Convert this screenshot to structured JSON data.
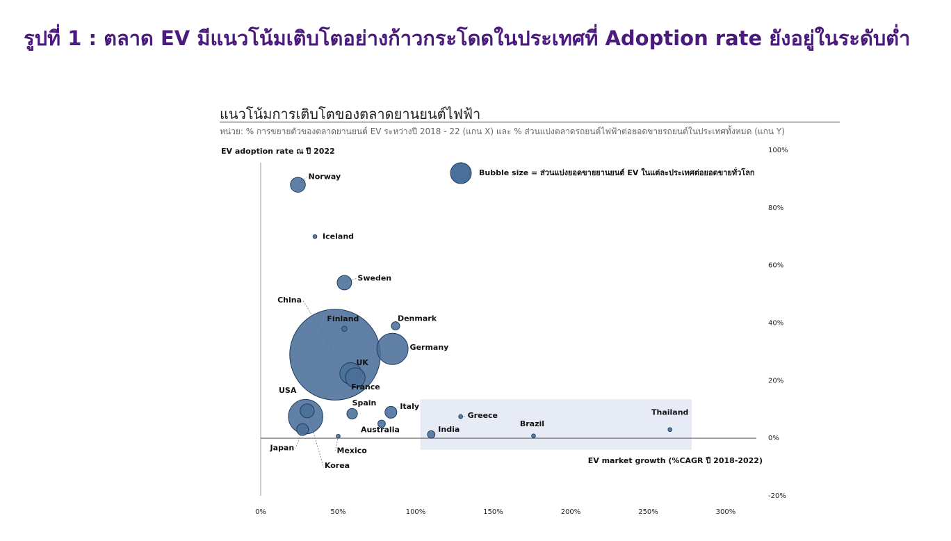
{
  "page_title": "รูปที่ 1 : ตลาด EV มีแนวโน้มเติบโตอย่างก้าวกระโดดในประเทศที่ Adoption rate ยังอยู่ในระดับต่ำ",
  "colors": {
    "title": "#4b1a7d",
    "bubble_fill": "#4a6f99",
    "bubble_stroke": "#1f3d63",
    "highlight_box": "#e6ebf5"
  },
  "chart_data": {
    "type": "scatter",
    "title": "แนวโน้มการเติบโตของตลาดยานยนต์ไฟฟ้า",
    "subtitle": "หน่วย: % การขยายตัวของตลาดยานยนต์ EV ระหว่างปี 2018 - 22 (แกน X) และ % ส่วนแบ่งตลาดรถยนต์ไฟฟ้าต่อยอดขายรถยนต์ในประเทศทั้งหมด (แกน Y)",
    "xlabel": "EV market growth (%CAGR ปี 2018-2022)",
    "ylabel": "EV adoption rate ณ ปี 2022",
    "bubble_legend": "Bubble size = ส่วนแบ่งยอดขายยานยนต์ EV ในแต่ละประเทศต่อยอดขายทั่วโลก",
    "xlim": [
      0,
      300
    ],
    "ylim": [
      -20,
      100
    ],
    "x_ticks": [
      "0%",
      "50%",
      "100%",
      "150%",
      "200%",
      "250%",
      "300%"
    ],
    "y_ticks": [
      "100%",
      "80%",
      "60%",
      "40%",
      "20%",
      "0%",
      "-20%"
    ],
    "highlight_region": {
      "x": [
        103,
        278
      ],
      "y": [
        -4,
        13.5
      ]
    },
    "points": [
      {
        "name": "Norway",
        "x": 24,
        "y": 88,
        "size": 1.6
      },
      {
        "name": "Iceland",
        "x": 35,
        "y": 70,
        "size": 0.05
      },
      {
        "name": "Sweden",
        "x": 54,
        "y": 54,
        "size": 1.5
      },
      {
        "name": "China",
        "x": 48,
        "y": 29,
        "size": 59.0
      },
      {
        "name": "Finland",
        "x": 54,
        "y": 38,
        "size": 0.2
      },
      {
        "name": "Denmark",
        "x": 87,
        "y": 39,
        "size": 0.5
      },
      {
        "name": "Germany",
        "x": 85,
        "y": 31,
        "size": 7.0
      },
      {
        "name": "UK",
        "x": 58,
        "y": 22.5,
        "size": 3.3
      },
      {
        "name": "France",
        "x": 61,
        "y": 21,
        "size": 2.8
      },
      {
        "name": "USA",
        "x": 29,
        "y": 7.5,
        "size": 8.5
      },
      {
        "name": "Korea",
        "x": 30,
        "y": 9.5,
        "size": 1.4
      },
      {
        "name": "Japan",
        "x": 27,
        "y": 3,
        "size": 1.0
      },
      {
        "name": "Mexico",
        "x": 50,
        "y": 0.7,
        "size": 0.03
      },
      {
        "name": "Spain",
        "x": 59,
        "y": 8.5,
        "size": 0.8
      },
      {
        "name": "Australia",
        "x": 78,
        "y": 5,
        "size": 0.4
      },
      {
        "name": "Italy",
        "x": 84,
        "y": 9,
        "size": 1.0
      },
      {
        "name": "India",
        "x": 110,
        "y": 1.3,
        "size": 0.4
      },
      {
        "name": "Greece",
        "x": 129,
        "y": 7.5,
        "size": 0.02
      },
      {
        "name": "Brazil",
        "x": 176,
        "y": 0.8,
        "size": 0.1
      },
      {
        "name": "Thailand",
        "x": 264,
        "y": 3,
        "size": 0.07
      }
    ]
  }
}
